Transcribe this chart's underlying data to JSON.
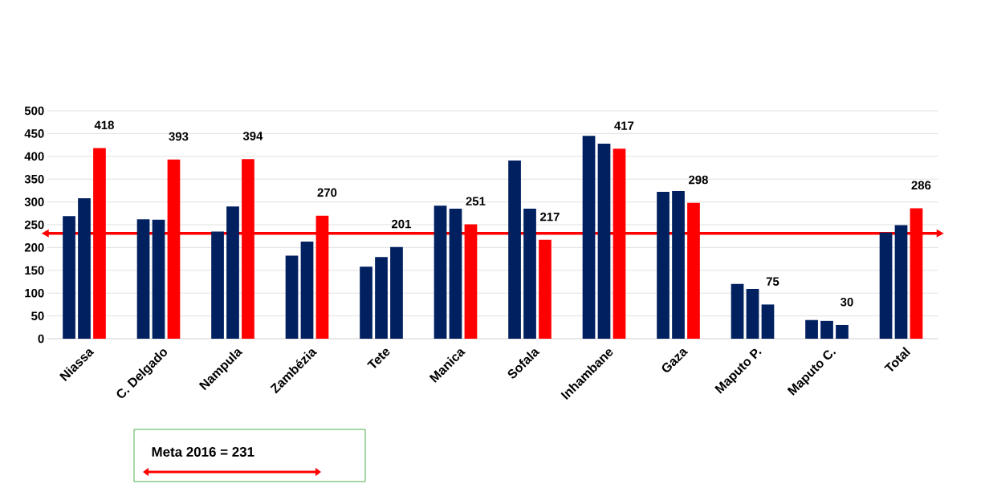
{
  "chart_data": {
    "type": "bar",
    "categories": [
      "Niassa",
      "C. Delgado",
      "Nampula",
      "Zambézia",
      "Tete",
      "Manica",
      "Sofala",
      "Inhambane",
      "Gaza",
      "Maputo P.",
      "Maputo C.",
      "Total"
    ],
    "series": [
      {
        "color": "#002060",
        "values": [
          269,
          262,
          235,
          182,
          158,
          292,
          391,
          445,
          322,
          120,
          41,
          233
        ]
      },
      {
        "color": "#002060",
        "values": [
          308,
          261,
          290,
          213,
          179,
          285,
          285,
          428,
          324,
          109,
          39,
          249
        ]
      },
      {
        "colors": [
          "#ff0000",
          "#ff0000",
          "#ff0000",
          "#ff0000",
          "#002060",
          "#ff0000",
          "#ff0000",
          "#ff0000",
          "#ff0000",
          "#002060",
          "#002060",
          "#ff0000"
        ],
        "values": [
          418,
          393,
          394,
          270,
          201,
          251,
          217,
          417,
          298,
          75,
          30,
          286
        ],
        "value_labels": [
          "418",
          "393",
          "394",
          "270",
          "201",
          "251",
          "217",
          "417",
          "298",
          "75",
          "30",
          "286"
        ]
      }
    ],
    "ylim": [
      0,
      500
    ],
    "yticks": [
      0,
      50,
      100,
      150,
      200,
      250,
      300,
      350,
      400,
      450,
      500
    ],
    "grid": "y",
    "ref_lines": [
      {
        "axis": "y",
        "value": 231,
        "color": "#ff0000"
      }
    ],
    "annotations": [
      "Meta 2016 = 231"
    ]
  }
}
